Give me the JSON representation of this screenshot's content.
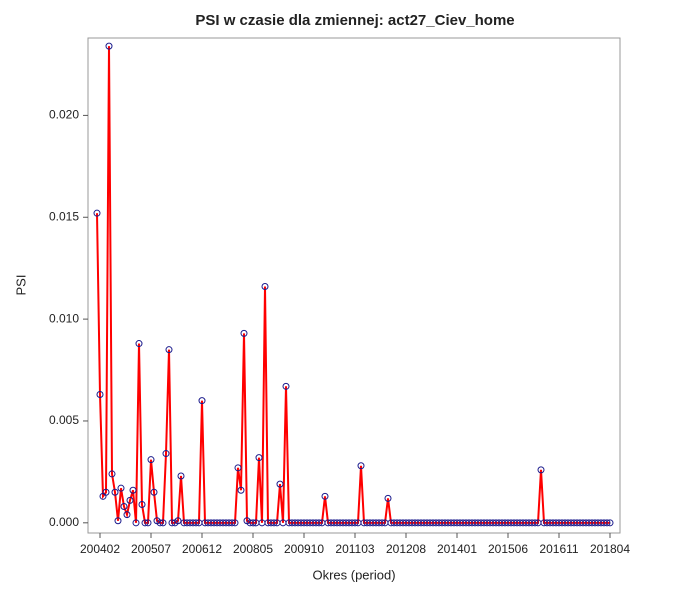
{
  "chart_data": {
    "type": "line",
    "title": "PSI w czasie dla zmiennej: act27_Ciev_home",
    "xlabel": "Okres (period)",
    "ylabel": "PSI",
    "categories": [
      null,
      "200402",
      null,
      null,
      null,
      null,
      null,
      null,
      null,
      null,
      null,
      null,
      null,
      null,
      null,
      null,
      null,
      null,
      "200507",
      null,
      null,
      null,
      null,
      null,
      null,
      null,
      null,
      null,
      null,
      null,
      null,
      null,
      null,
      null,
      null,
      "200612",
      null,
      null,
      null,
      null,
      null,
      null,
      null,
      null,
      null,
      null,
      null,
      null,
      null,
      null,
      null,
      null,
      "200805",
      null,
      null,
      null,
      null,
      null,
      null,
      null,
      null,
      null,
      null,
      null,
      null,
      null,
      null,
      null,
      null,
      "200910",
      null,
      null,
      null,
      null,
      null,
      null,
      null,
      null,
      null,
      null,
      null,
      null,
      null,
      null,
      null,
      null,
      "201103",
      null,
      null,
      null,
      null,
      null,
      null,
      null,
      null,
      null,
      null,
      null,
      null,
      null,
      null,
      null,
      null,
      "201208",
      null,
      null,
      null,
      null,
      null,
      null,
      null,
      null,
      null,
      null,
      null,
      null,
      null,
      null,
      null,
      null,
      "201401",
      null,
      null,
      null,
      null,
      null,
      null,
      null,
      null,
      null,
      null,
      null,
      null,
      null,
      null,
      null,
      null,
      "201506",
      null,
      null,
      null,
      null,
      null,
      null,
      null,
      null,
      null,
      null,
      null,
      null,
      null,
      null,
      null,
      null,
      "201611",
      null,
      null,
      null,
      null,
      null,
      null,
      null,
      null,
      null,
      null,
      null,
      null,
      null,
      null,
      null,
      null,
      "201804"
    ],
    "series": [
      {
        "name": "PSI",
        "color": "#ff0000",
        "marker_color": "#1a1a8c",
        "values": [
          0.0152,
          0.0063,
          0.0013,
          0.0015,
          0.0234,
          0.0024,
          0.0015,
          0.0001,
          0.0017,
          0.0008,
          0.0004,
          0.0011,
          0.0016,
          0,
          0.0088,
          0.0009,
          0,
          0,
          0.0031,
          0.0015,
          0.0001,
          0,
          0,
          0.0034,
          0.0085,
          0,
          0,
          0.0001,
          0.0023,
          0,
          0,
          0,
          0,
          0,
          0,
          0.006,
          0,
          0,
          0,
          0,
          0,
          0,
          0,
          0,
          0,
          0,
          0,
          0.0027,
          0.0016,
          0.0093,
          0.0001,
          0,
          0,
          0,
          0.0032,
          0,
          0.0116,
          0,
          0,
          0,
          0,
          0.0019,
          0,
          0.0067,
          0,
          0,
          0,
          0,
          0,
          0,
          0,
          0,
          0,
          0,
          0,
          0,
          0.0013,
          0,
          0,
          0,
          0,
          0,
          0,
          0,
          0,
          0,
          0,
          0,
          0.0028,
          0,
          0,
          0,
          0,
          0,
          0,
          0,
          0,
          0.0012,
          0,
          0,
          0,
          0,
          0,
          0,
          0,
          0,
          0,
          0,
          0,
          0,
          0,
          0,
          0,
          0,
          0,
          0,
          0,
          0,
          0,
          0,
          0,
          0,
          0,
          0,
          0,
          0,
          0,
          0,
          0,
          0,
          0,
          0,
          0,
          0,
          0,
          0,
          0,
          0,
          0,
          0,
          0,
          0,
          0,
          0,
          0,
          0,
          0,
          0,
          0.0026,
          0,
          0,
          0,
          0,
          0,
          0,
          0,
          0,
          0,
          0,
          0,
          0,
          0,
          0,
          0,
          0,
          0,
          0,
          0,
          0,
          0,
          0,
          0
        ]
      }
    ],
    "ylim": [
      -0.0005,
      0.0238
    ],
    "yticks": [
      {
        "value": 0,
        "label": "0.000"
      },
      {
        "value": 0.005,
        "label": "0.005"
      },
      {
        "value": 0.01,
        "label": "0.010"
      },
      {
        "value": 0.015,
        "label": "0.015"
      },
      {
        "value": 0.02,
        "label": "0.020"
      }
    ]
  }
}
